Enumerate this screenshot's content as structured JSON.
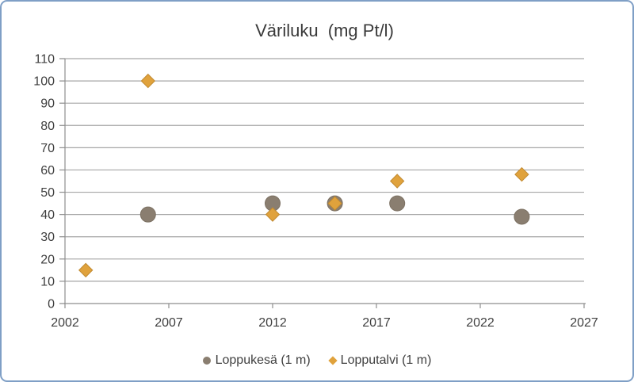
{
  "chart_data": {
    "type": "scatter",
    "title": "Väriluku  (mg Pt/l)",
    "xlabel": "",
    "ylabel": "",
    "xlim": [
      2002,
      2027
    ],
    "ylim": [
      0,
      110
    ],
    "xticks": [
      2002,
      2007,
      2012,
      2017,
      2022,
      2027
    ],
    "yticks": [
      0,
      10,
      20,
      30,
      40,
      50,
      60,
      70,
      80,
      90,
      100,
      110
    ],
    "grid": "horizontal",
    "legend_position": "bottom",
    "colors": {
      "gridline": "#A6A6A6",
      "axis": "#8E8E8E",
      "tick_text": "#3F3F3F",
      "frame_border": "#7F9FC6"
    },
    "series": [
      {
        "name": "Loppukesä (1 m)",
        "marker": "circle",
        "color": "#8A7E70",
        "edge_color": "#7C7163",
        "points": [
          [
            2006,
            40
          ],
          [
            2012,
            45
          ],
          [
            2015,
            45
          ],
          [
            2018,
            45
          ],
          [
            2024,
            39
          ]
        ]
      },
      {
        "name": "Lopputalvi (1 m)",
        "marker": "diamond",
        "color": "#E0A23C",
        "edge_color": "#C18A31",
        "points": [
          [
            2003,
            15
          ],
          [
            2006,
            100
          ],
          [
            2012,
            40
          ],
          [
            2015,
            45
          ],
          [
            2018,
            55
          ],
          [
            2024,
            58
          ]
        ]
      }
    ]
  }
}
